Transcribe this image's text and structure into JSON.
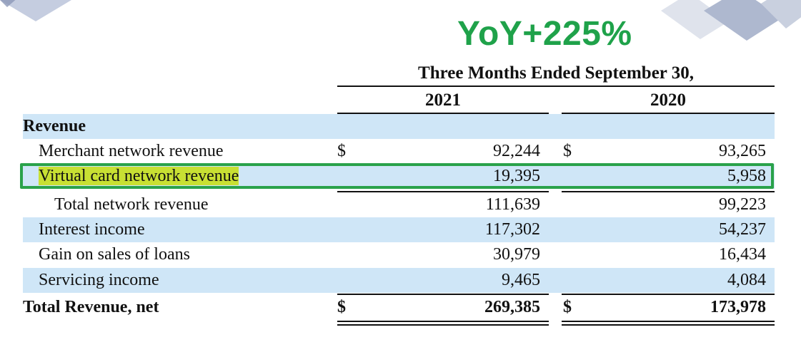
{
  "headline": "YoY+225%",
  "colors": {
    "headline": "#1fa24a",
    "row_shade": "#cfe6f7",
    "highlight_border": "#2aa24a",
    "highlight_fill": "#c8e033"
  },
  "table": {
    "period_header": "Three Months Ended September 30,",
    "years": [
      "2021",
      "2020"
    ],
    "section_label": "Revenue",
    "rows": [
      {
        "label": "Merchant network revenue",
        "dollar": "$",
        "v2021": "92,244",
        "v2020": "93,265"
      },
      {
        "label": "Virtual card network revenue",
        "dollar": "",
        "v2021": "19,395",
        "v2020": "5,958"
      },
      {
        "label": "Total network revenue",
        "dollar": "",
        "v2021": "111,639",
        "v2020": "99,223"
      },
      {
        "label": "Interest income",
        "dollar": "",
        "v2021": "117,302",
        "v2020": "54,237"
      },
      {
        "label": "Gain on sales of loans",
        "dollar": "",
        "v2021": "30,979",
        "v2020": "16,434"
      },
      {
        "label": "Servicing income",
        "dollar": "",
        "v2021": "9,465",
        "v2020": "4,084"
      }
    ],
    "total": {
      "label": "Total Revenue, net",
      "dollar": "$",
      "v2021": "269,385",
      "v2020": "173,978"
    }
  }
}
